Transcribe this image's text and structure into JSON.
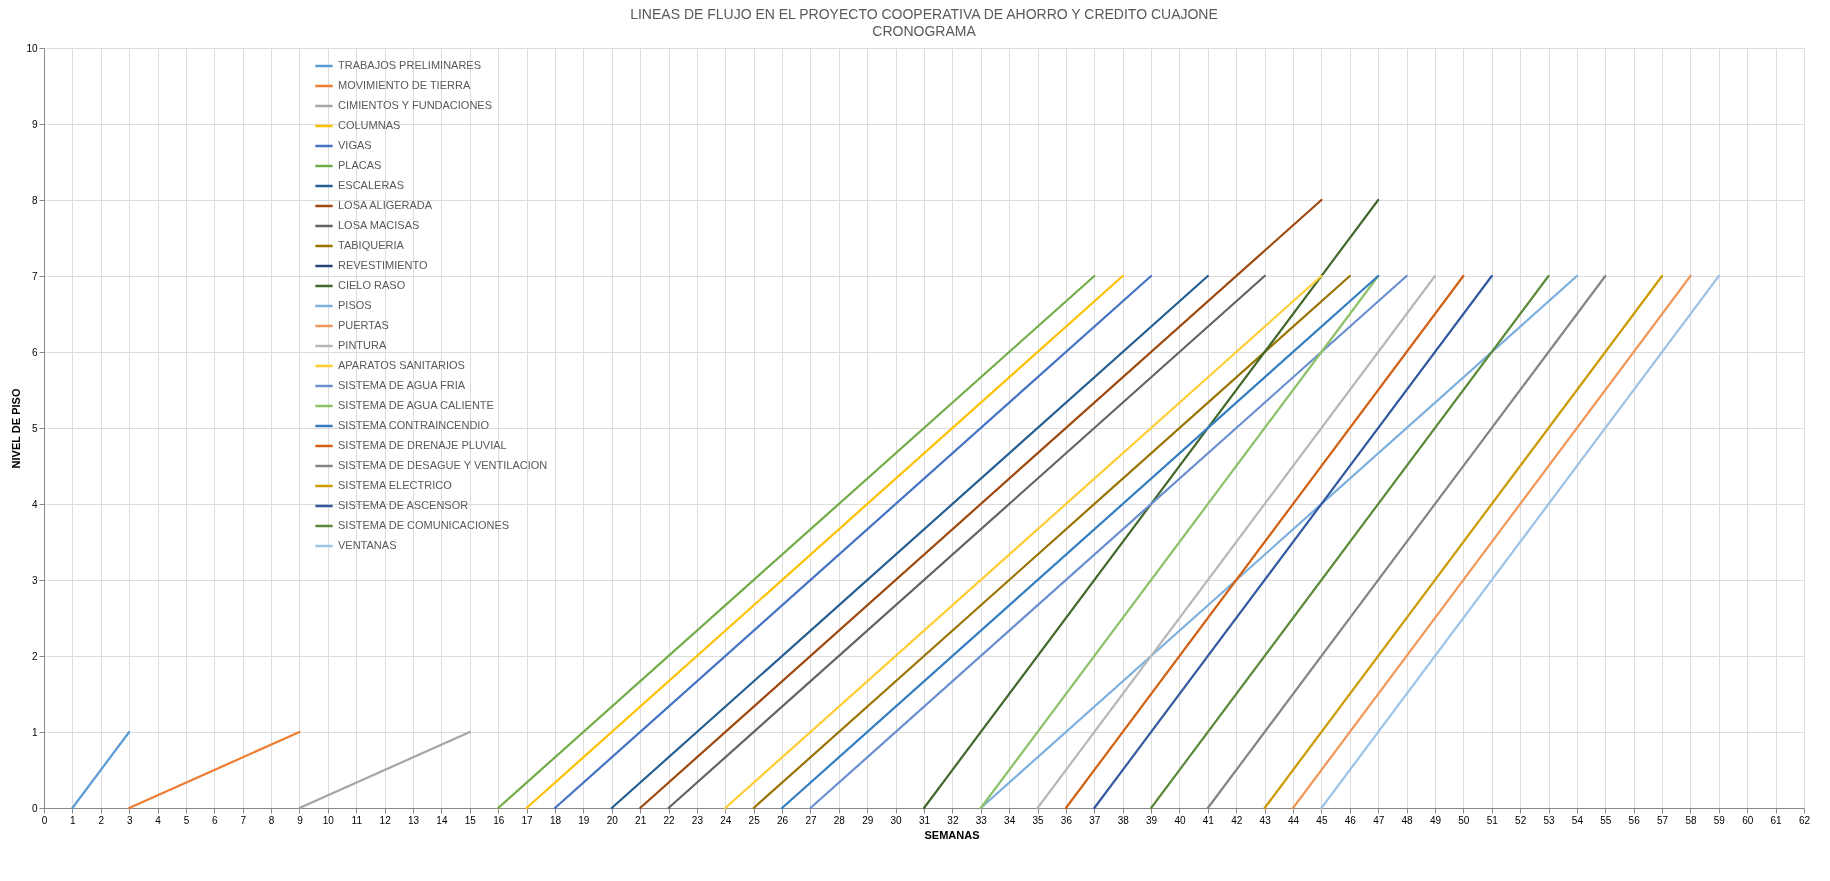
{
  "chart_data": {
    "type": "line",
    "title": "LINEAS DE FLUJO EN EL PROYECTO COOPERATIVA DE AHORRO Y CREDITO CUAJONE",
    "subtitle": "CRONOGRAMA",
    "xlabel": "SEMANAS",
    "ylabel": "NIVEL DE PISO",
    "xlim": [
      0,
      62
    ],
    "xticks": [
      0,
      1,
      2,
      3,
      4,
      5,
      6,
      7,
      8,
      9,
      10,
      11,
      12,
      13,
      14,
      15,
      16,
      17,
      18,
      19,
      20,
      21,
      22,
      23,
      24,
      25,
      26,
      27,
      28,
      29,
      30,
      31,
      32,
      33,
      34,
      35,
      36,
      37,
      38,
      39,
      40,
      41,
      42,
      43,
      44,
      45,
      46,
      47,
      48,
      49,
      50,
      51,
      52,
      53,
      54,
      55,
      56,
      57,
      58,
      59,
      60,
      61,
      62
    ],
    "ylim": [
      0,
      10
    ],
    "yticks": [
      0,
      1,
      2,
      3,
      4,
      5,
      6,
      7,
      8,
      9,
      10
    ],
    "grid": true,
    "legend": "top left",
    "marker": "none",
    "line_style": "solid",
    "series": [
      {
        "name": "TRABAJOS PRELIMINARES",
        "color": "#5b9bd5",
        "x": [
          1,
          3
        ],
        "values": [
          0,
          1
        ]
      },
      {
        "name": "MOVIMIENTO DE TIERRA",
        "color": "#ed7d31",
        "x": [
          3,
          9
        ],
        "values": [
          0,
          1
        ]
      },
      {
        "name": "CIMIENTOS Y FUNDACIONES",
        "color": "#a5a5a5",
        "x": [
          9,
          15
        ],
        "values": [
          0,
          1
        ]
      },
      {
        "name": "COLUMNAS",
        "color": "#ffc000",
        "x": [
          17,
          38
        ],
        "values": [
          0,
          7
        ]
      },
      {
        "name": "VIGAS",
        "color": "#4472c4",
        "x": [
          18,
          39
        ],
        "values": [
          0,
          7
        ]
      },
      {
        "name": "PLACAS",
        "color": "#70ad47",
        "x": [
          16,
          37
        ],
        "values": [
          0,
          7
        ]
      },
      {
        "name": "ESCALERAS",
        "color": "#255e91",
        "x": [
          20,
          41
        ],
        "values": [
          0,
          7
        ]
      },
      {
        "name": "LOSA ALIGERADA",
        "color": "#9e480e",
        "x": [
          21,
          45
        ],
        "values": [
          0,
          8
        ]
      },
      {
        "name": "LOSA MACISAS",
        "color": "#636363",
        "x": [
          22,
          43
        ],
        "values": [
          0,
          7
        ]
      },
      {
        "name": "TABIQUERIA",
        "color": "#997300",
        "x": [
          25,
          46
        ],
        "values": [
          0,
          7
        ]
      },
      {
        "name": "REVESTIMIENTO",
        "color": "#264478",
        "x": [
          null,
          null
        ],
        "values": [
          null,
          null
        ]
      },
      {
        "name": "CIELO RASO",
        "color": "#43682b",
        "x": [
          31,
          47
        ],
        "values": [
          0,
          8
        ]
      },
      {
        "name": "PISOS",
        "color": "#7cafdd",
        "x": [
          33,
          54
        ],
        "values": [
          0,
          7
        ]
      },
      {
        "name": "PUERTAS",
        "color": "#f1975a",
        "x": [
          44,
          58
        ],
        "values": [
          0,
          7
        ]
      },
      {
        "name": "PINTURA",
        "color": "#b7b7b7",
        "x": [
          35,
          49
        ],
        "values": [
          0,
          7
        ]
      },
      {
        "name": "APARATOS SANITARIOS",
        "color": "#ffcd33",
        "x": [
          24,
          45
        ],
        "values": [
          0,
          7
        ]
      },
      {
        "name": "SISTEMA DE AGUA FRIA",
        "color": "#698ed0",
        "x": [
          27,
          48
        ],
        "values": [
          0,
          7
        ]
      },
      {
        "name": "SISTEMA DE AGUA CALIENTE",
        "color": "#8cc168",
        "x": [
          33,
          47
        ],
        "values": [
          0,
          7
        ]
      },
      {
        "name": "SISTEMA CONTRAINCENDIO",
        "color": "#327dc2",
        "x": [
          26,
          47
        ],
        "values": [
          0,
          7
        ]
      },
      {
        "name": "SISTEMA DE DRENAJE PLUVIAL",
        "color": "#d26012",
        "x": [
          36,
          50
        ],
        "values": [
          0,
          7
        ]
      },
      {
        "name": "SISTEMA DE DESAGUE Y VENTILACION",
        "color": "#848484",
        "x": [
          41,
          55
        ],
        "values": [
          0,
          7
        ]
      },
      {
        "name": "SISTEMA ELECTRICO",
        "color": "#cc9a00",
        "x": [
          43,
          57
        ],
        "values": [
          0,
          7
        ]
      },
      {
        "name": "SISTEMA DE ASCENSOR",
        "color": "#335aa1",
        "x": [
          37,
          51
        ],
        "values": [
          0,
          7
        ]
      },
      {
        "name": "SISTEMA DE COMUNICACIONES",
        "color": "#5a8a39",
        "x": [
          39,
          53
        ],
        "values": [
          0,
          7
        ]
      },
      {
        "name": "VENTANAS",
        "color": "#9dc3e6",
        "x": [
          45,
          59
        ],
        "values": [
          0,
          7
        ]
      }
    ]
  }
}
